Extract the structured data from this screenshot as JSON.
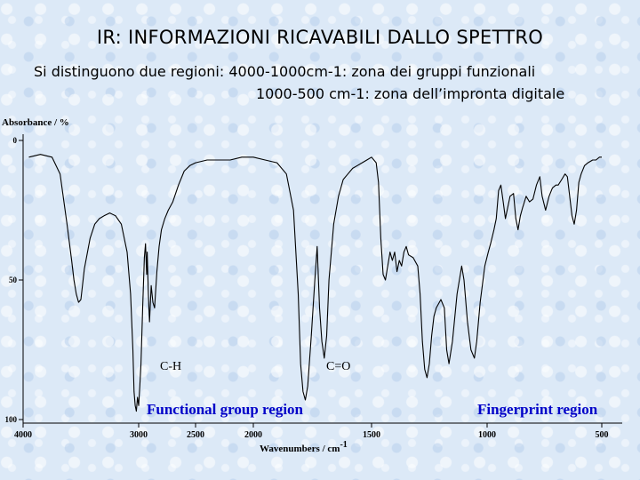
{
  "slide": {
    "title": "IR: INFORMAZIONI RICAVABILI DALLO SPETTRO",
    "subtitle_line1": "Si distinguono due regioni: 4000-1000cm-1: zona dei gruppi funzionali",
    "subtitle_line2": "1000-500 cm-1: zona dell’impronta digitale"
  },
  "colors": {
    "accent": "#0000c8",
    "trace": "#000000"
  },
  "chart_data": {
    "type": "line",
    "title": "",
    "xlabel": "Wavenumbers / cm-1",
    "xlabel_main": "Wavenumbers / cm",
    "xlabel_sup": "-1",
    "ylabel": "Absorbance / %",
    "xlim": [
      4000,
      500
    ],
    "ylim": [
      0,
      100
    ],
    "y_inverted": true,
    "grid": false,
    "x_ticks": [
      4000,
      3000,
      2500,
      2000,
      1500,
      1000,
      500
    ],
    "x_tick_labels": [
      "4000",
      "3000",
      "2500",
      "2000",
      "1500",
      "1000",
      "500"
    ],
    "y_ticks": [
      0,
      50,
      100
    ],
    "y_tick_labels": [
      "0",
      "50",
      "100"
    ],
    "annotations": {
      "ch_label": "C-H",
      "co_label": "C=O",
      "functional_region": "Functional group region",
      "fingerprint_region": "Fingerprint region"
    },
    "series": [
      {
        "values": [
          [
            3950,
            6
          ],
          [
            3850,
            5
          ],
          [
            3750,
            6
          ],
          [
            3680,
            12
          ],
          [
            3620,
            30
          ],
          [
            3580,
            43
          ],
          [
            3560,
            50
          ],
          [
            3540,
            55
          ],
          [
            3520,
            58
          ],
          [
            3500,
            57
          ],
          [
            3470,
            46
          ],
          [
            3420,
            35
          ],
          [
            3380,
            30
          ],
          [
            3340,
            28
          ],
          [
            3300,
            27
          ],
          [
            3250,
            26
          ],
          [
            3200,
            27
          ],
          [
            3150,
            30
          ],
          [
            3100,
            40
          ],
          [
            3070,
            55
          ],
          [
            3050,
            75
          ],
          [
            3040,
            90
          ],
          [
            3030,
            95
          ],
          [
            3020,
            97
          ],
          [
            3010,
            92
          ],
          [
            3000,
            95
          ],
          [
            2990,
            88
          ],
          [
            2980,
            80
          ],
          [
            2965,
            60
          ],
          [
            2950,
            42
          ],
          [
            2940,
            37
          ],
          [
            2930,
            48
          ],
          [
            2925,
            40
          ],
          [
            2915,
            55
          ],
          [
            2905,
            65
          ],
          [
            2890,
            52
          ],
          [
            2875,
            58
          ],
          [
            2860,
            60
          ],
          [
            2840,
            47
          ],
          [
            2820,
            38
          ],
          [
            2800,
            32
          ],
          [
            2770,
            28
          ],
          [
            2740,
            25
          ],
          [
            2700,
            22
          ],
          [
            2650,
            16
          ],
          [
            2600,
            11
          ],
          [
            2550,
            9
          ],
          [
            2500,
            8
          ],
          [
            2400,
            7
          ],
          [
            2300,
            7
          ],
          [
            2200,
            7
          ],
          [
            2100,
            6
          ],
          [
            2000,
            6
          ],
          [
            1950,
            7
          ],
          [
            1900,
            8
          ],
          [
            1860,
            12
          ],
          [
            1830,
            25
          ],
          [
            1810,
            55
          ],
          [
            1800,
            80
          ],
          [
            1790,
            90
          ],
          [
            1780,
            93
          ],
          [
            1770,
            88
          ],
          [
            1755,
            70
          ],
          [
            1740,
            50
          ],
          [
            1730,
            38
          ],
          [
            1720,
            60
          ],
          [
            1710,
            72
          ],
          [
            1700,
            78
          ],
          [
            1690,
            70
          ],
          [
            1680,
            50
          ],
          [
            1660,
            30
          ],
          [
            1640,
            20
          ],
          [
            1620,
            14
          ],
          [
            1600,
            12
          ],
          [
            1580,
            10
          ],
          [
            1560,
            9
          ],
          [
            1540,
            8
          ],
          [
            1520,
            7
          ],
          [
            1500,
            6
          ],
          [
            1480,
            8
          ],
          [
            1470,
            15
          ],
          [
            1460,
            35
          ],
          [
            1450,
            48
          ],
          [
            1440,
            50
          ],
          [
            1430,
            45
          ],
          [
            1420,
            40
          ],
          [
            1410,
            43
          ],
          [
            1400,
            40
          ],
          [
            1390,
            47
          ],
          [
            1380,
            43
          ],
          [
            1370,
            45
          ],
          [
            1360,
            40
          ],
          [
            1350,
            38
          ],
          [
            1340,
            41
          ],
          [
            1320,
            42
          ],
          [
            1300,
            45
          ],
          [
            1290,
            55
          ],
          [
            1280,
            72
          ],
          [
            1270,
            82
          ],
          [
            1260,
            85
          ],
          [
            1250,
            80
          ],
          [
            1240,
            70
          ],
          [
            1230,
            63
          ],
          [
            1220,
            60
          ],
          [
            1200,
            57
          ],
          [
            1185,
            60
          ],
          [
            1175,
            75
          ],
          [
            1165,
            80
          ],
          [
            1150,
            72
          ],
          [
            1130,
            55
          ],
          [
            1110,
            45
          ],
          [
            1100,
            50
          ],
          [
            1085,
            65
          ],
          [
            1070,
            75
          ],
          [
            1055,
            78
          ],
          [
            1045,
            72
          ],
          [
            1030,
            58
          ],
          [
            1010,
            45
          ],
          [
            995,
            40
          ],
          [
            985,
            37
          ],
          [
            970,
            32
          ],
          [
            960,
            28
          ],
          [
            950,
            18
          ],
          [
            940,
            16
          ],
          [
            930,
            22
          ],
          [
            920,
            28
          ],
          [
            910,
            24
          ],
          [
            900,
            20
          ],
          [
            885,
            19
          ],
          [
            875,
            28
          ],
          [
            865,
            32
          ],
          [
            855,
            27
          ],
          [
            845,
            24
          ],
          [
            830,
            20
          ],
          [
            815,
            22
          ],
          [
            800,
            21
          ],
          [
            785,
            16
          ],
          [
            770,
            13
          ],
          [
            760,
            20
          ],
          [
            745,
            25
          ],
          [
            730,
            20
          ],
          [
            715,
            17
          ],
          [
            700,
            16
          ],
          [
            690,
            16
          ],
          [
            675,
            14
          ],
          [
            660,
            12
          ],
          [
            650,
            13
          ],
          [
            640,
            20
          ],
          [
            630,
            27
          ],
          [
            620,
            30
          ],
          [
            610,
            25
          ],
          [
            600,
            15
          ],
          [
            590,
            12
          ],
          [
            575,
            9
          ],
          [
            560,
            8
          ],
          [
            540,
            7
          ],
          [
            525,
            7
          ],
          [
            510,
            6
          ],
          [
            500,
            6
          ]
        ]
      }
    ]
  }
}
